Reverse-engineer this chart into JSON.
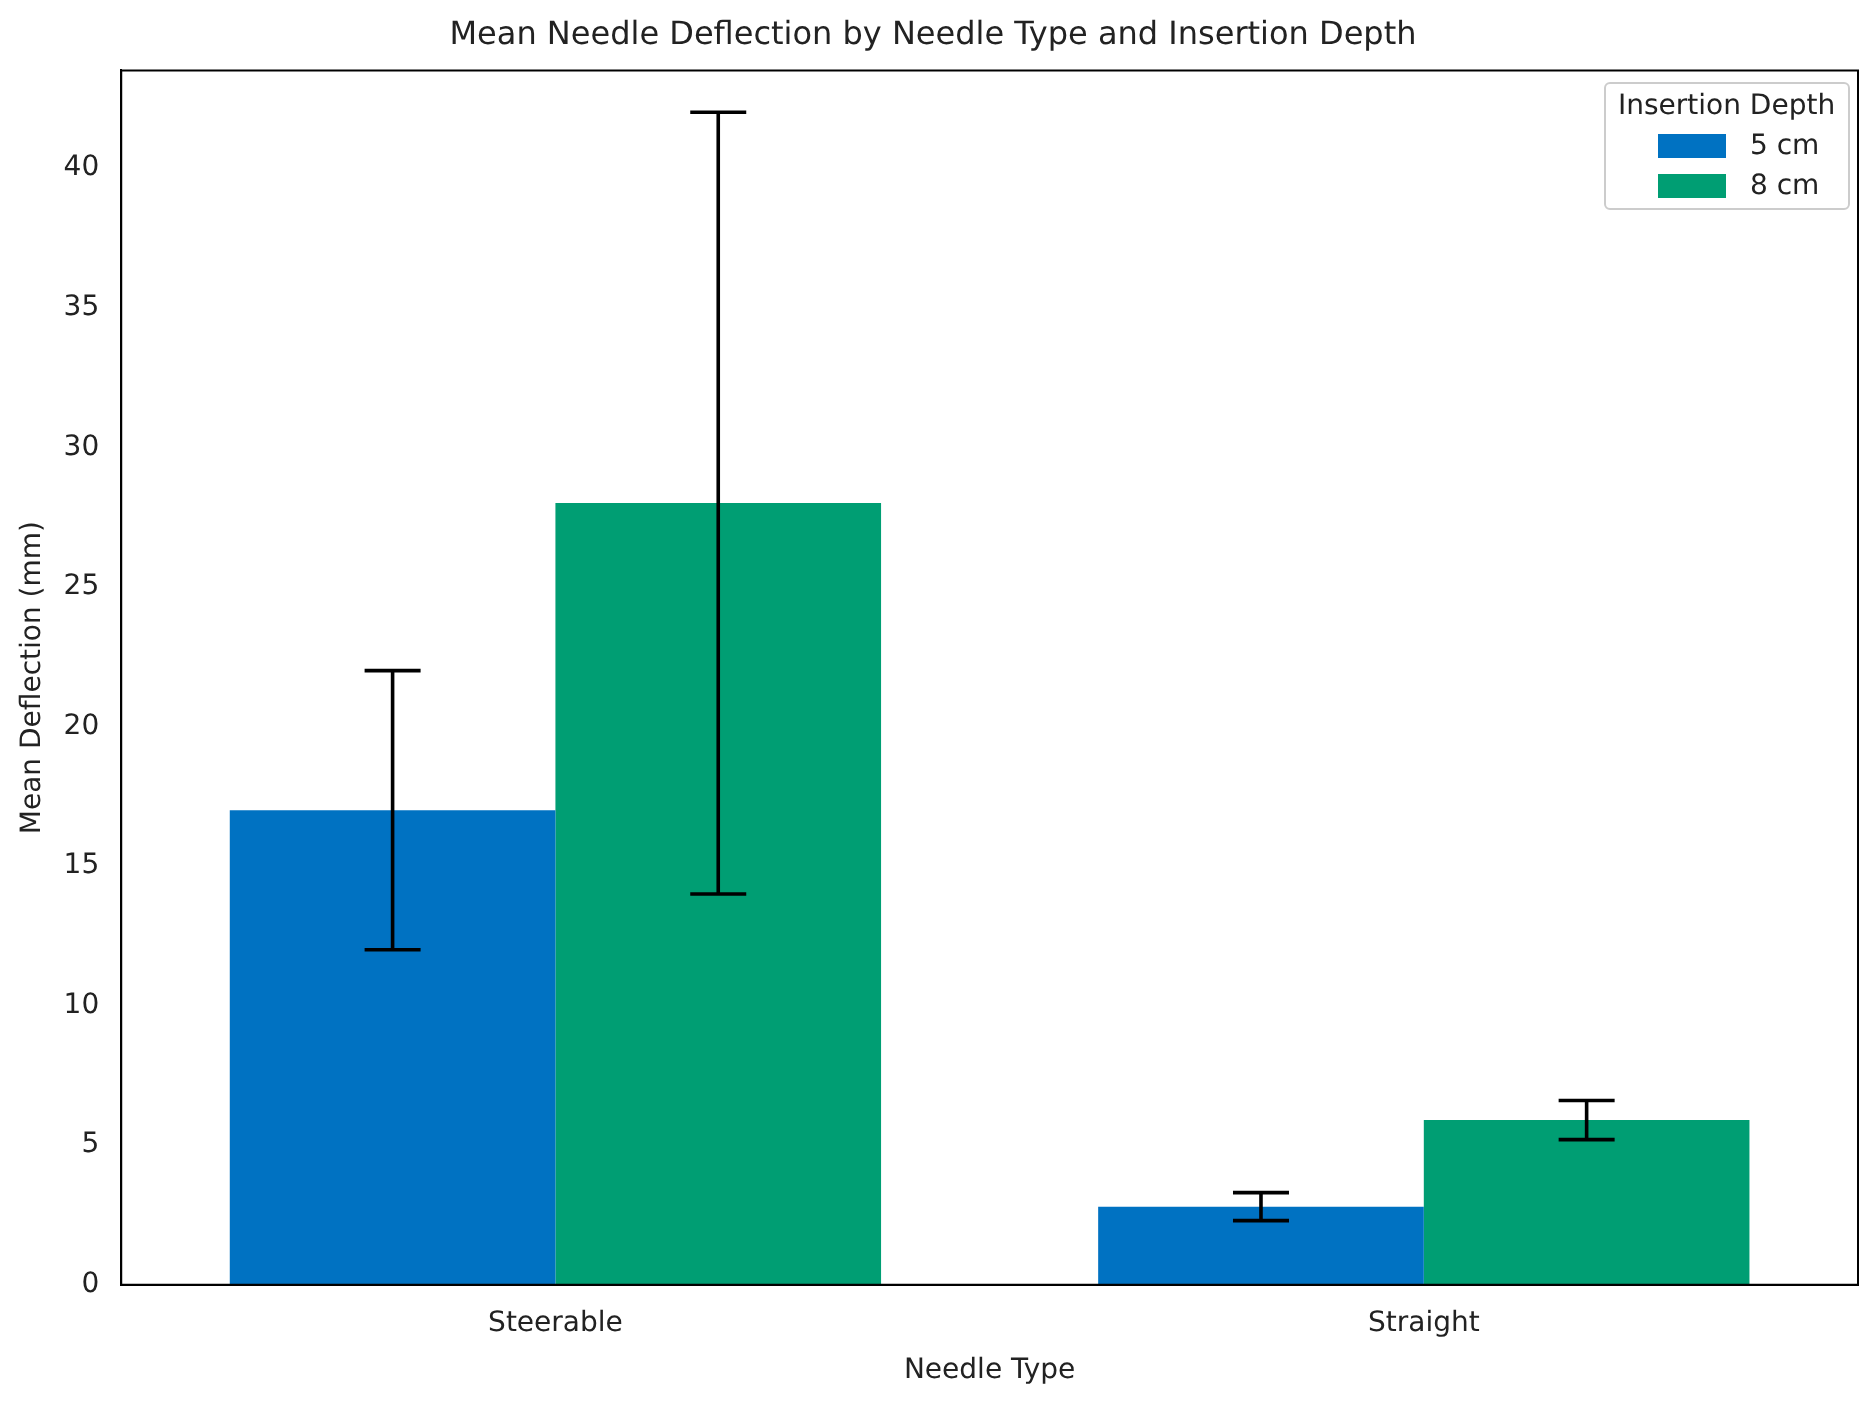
{
  "chart_data": {
    "type": "bar",
    "title": "Mean Needle Deflection by Needle Type and Insertion Depth",
    "xlabel": "Needle Type",
    "ylabel": "Mean Deflection (mm)",
    "legend_title": "Insertion Depth",
    "categories": [
      "Steerable",
      "Straight"
    ],
    "series": [
      {
        "name": "5 cm",
        "color": "#0072c2",
        "values": [
          17,
          2.8
        ],
        "errors": [
          5,
          0.5
        ]
      },
      {
        "name": "8 cm",
        "color": "#009e73",
        "values": [
          28,
          5.9
        ],
        "errors": [
          14,
          0.7
        ]
      }
    ],
    "ylim": [
      0,
      43.5
    ],
    "yticks": [
      0,
      5,
      10,
      15,
      20,
      25,
      30,
      35,
      40
    ],
    "grid": false,
    "legend": "top right"
  }
}
